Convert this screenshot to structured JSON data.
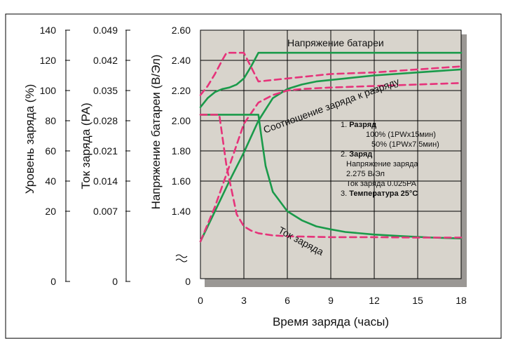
{
  "chart_data": {
    "type": "line",
    "title": "",
    "xlabel": "Время заряда (часы)",
    "xlim": [
      0,
      18
    ],
    "x_ticks": [
      "0",
      "3",
      "6",
      "9",
      "12",
      "15",
      "18"
    ],
    "grid": true,
    "legend": "none",
    "left_axes": [
      {
        "label": "Уровень заряда (%)",
        "ticks": [
          "140",
          "120",
          "100",
          "80",
          "60",
          "40",
          "20",
          "0"
        ]
      },
      {
        "label": "Ток заряда (PA)",
        "ticks": [
          "0.049",
          "0.042",
          "0.035",
          "0.028",
          "0.021",
          "0.014",
          "0.007",
          "0"
        ]
      },
      {
        "label": "Напряжение батареи (В/Эл)",
        "ticks": [
          "2.60",
          "2.40",
          "2.20",
          "2.00",
          "1.80",
          "1.60",
          "1.40",
          "0"
        ]
      }
    ],
    "series": [
      {
        "name": "Напряжение батареи",
        "axis": "voltage",
        "style": "solid",
        "color": "#1a9a4a",
        "x": [
          0,
          0.5,
          1,
          1.5,
          2,
          2.5,
          3,
          3.5,
          4,
          18
        ],
        "y": [
          2.09,
          2.15,
          2.19,
          2.21,
          2.22,
          2.24,
          2.28,
          2.36,
          2.45,
          2.45
        ]
      },
      {
        "name": "",
        "axis": "voltage",
        "style": "dash",
        "color": "#e6337a",
        "x": [
          0,
          0.5,
          1,
          1.5,
          1.8,
          3,
          4,
          6,
          9,
          12,
          15,
          18
        ],
        "y": [
          2.17,
          2.23,
          2.31,
          2.4,
          2.45,
          2.45,
          2.26,
          2.28,
          2.31,
          2.32,
          2.34,
          2.36
        ]
      },
      {
        "name": "Соотношение заряда к разряду",
        "axis": "percent",
        "style": "solid",
        "color": "#1a9a4a",
        "x": [
          0,
          1,
          2,
          3,
          4,
          5,
          6,
          7,
          8,
          10,
          12,
          15,
          18
        ],
        "y": [
          0,
          20,
          40,
          59,
          80,
          95,
          101,
          104,
          106,
          108,
          110,
          112,
          114
        ]
      },
      {
        "name": "",
        "axis": "percent",
        "style": "dash",
        "color": "#e6337a",
        "x": [
          0,
          1,
          2,
          3,
          4,
          5,
          6,
          7,
          9,
          12,
          15,
          18
        ],
        "y": [
          0,
          23,
          50,
          78,
          92,
          97,
          100,
          101,
          102,
          103,
          104,
          105
        ]
      },
      {
        "name": "Ток заряда",
        "axis": "current",
        "style": "solid",
        "color": "#1a9a4a",
        "x": [
          0,
          4,
          4.2,
          4.5,
          5,
          6,
          7,
          8,
          9,
          10,
          12,
          14,
          16,
          18
        ],
        "y": [
          0.0294,
          0.0294,
          0.0245,
          0.0175,
          0.0115,
          0.007,
          0.0049,
          0.0035,
          0.0028,
          0.0022,
          0.0016,
          0.0012,
          0.0009,
          0.0007
        ]
      },
      {
        "name": "",
        "axis": "current",
        "style": "dash",
        "color": "#e6337a",
        "x": [
          0,
          1.3,
          1.8,
          2.5,
          3,
          3.5,
          4,
          5,
          6,
          9,
          12,
          15,
          18
        ],
        "y": [
          0.0294,
          0.0294,
          0.0175,
          0.0063,
          0.0035,
          0.0025,
          0.0019,
          0.0014,
          0.0012,
          0.001,
          0.001,
          0.0009,
          0.0009
        ]
      }
    ],
    "annotations": [
      {
        "id": "a1",
        "text": "1. ",
        "bold": false
      },
      {
        "id": "a1b",
        "text": "Разряд",
        "bold": true
      },
      {
        "id": "a2",
        "text": "100% (1PWx15мин)",
        "bold": false
      },
      {
        "id": "a3",
        "text": "50% (1PWx7.5мин)",
        "bold": false
      },
      {
        "id": "a4",
        "text": "2. ",
        "bold": false
      },
      {
        "id": "a4b",
        "text": "Заряд",
        "bold": true
      },
      {
        "id": "a5",
        "text": "Напряжение заряда",
        "bold": false
      },
      {
        "id": "a6",
        "text": "2.275 В/Эл",
        "bold": false
      },
      {
        "id": "a7",
        "text": "Ток заряда 0.025PA",
        "bold": false
      },
      {
        "id": "a8",
        "text": "3. ",
        "bold": false
      },
      {
        "id": "a8b",
        "text": "Температура 25°C",
        "bold": true
      }
    ],
    "colors": {
      "plot_background": "#d8d4cc",
      "grid": "#000000",
      "solid": "#1a9a4a",
      "dashed": "#e6337a"
    }
  }
}
